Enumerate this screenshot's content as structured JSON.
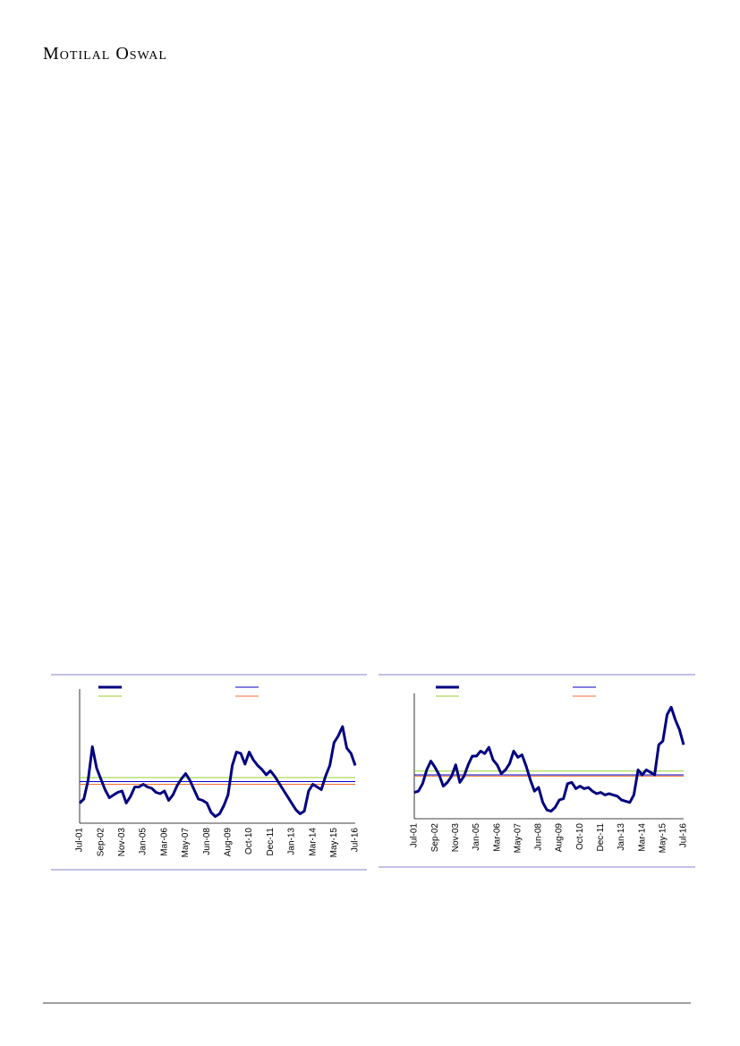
{
  "header": {
    "brand": "Motilal Oswal"
  },
  "chart_data": [
    {
      "type": "line",
      "categories": [
        "Jul-01",
        null,
        null,
        null,
        null,
        "Sep-02",
        null,
        null,
        null,
        null,
        "Nov-03",
        null,
        null,
        null,
        null,
        "Jan-05",
        null,
        null,
        null,
        null,
        "Mar-06",
        null,
        null,
        null,
        null,
        "May-07",
        null,
        null,
        null,
        null,
        "Jun-08",
        null,
        null,
        null,
        null,
        "Aug-09",
        null,
        null,
        null,
        null,
        "Oct-10",
        null,
        null,
        null,
        null,
        "Dec-11",
        null,
        null,
        null,
        null,
        "Jan-13",
        null,
        null,
        null,
        null,
        "Mar-14",
        null,
        null,
        null,
        null,
        "May-15",
        null,
        null,
        null,
        null,
        "Jul-16"
      ],
      "ylim": [
        0,
        100
      ],
      "series": [
        {
          "color": "#000080",
          "line_width": 3,
          "values": [
            15,
            18,
            32,
            57,
            41,
            33,
            25,
            19,
            21,
            23,
            24,
            15,
            20,
            27,
            27,
            29,
            27,
            26,
            23,
            22,
            24,
            17,
            21,
            28,
            33,
            37,
            32,
            25,
            18,
            17,
            15,
            8,
            5,
            7,
            13,
            21,
            43,
            53,
            52,
            44,
            53,
            47,
            43,
            40,
            36,
            39,
            35,
            30,
            25,
            20,
            15,
            10,
            7,
            9,
            24,
            29,
            27,
            25,
            35,
            43,
            60,
            65,
            72,
            56,
            52,
            43
          ]
        }
      ],
      "hlines": [
        {
          "value": 31,
          "color": "#0000cc"
        },
        {
          "value": 34,
          "color": "#9acd32"
        },
        {
          "value": 29,
          "color": "#f07030"
        }
      ]
    },
    {
      "type": "line",
      "categories": [
        "Jul-01",
        null,
        null,
        null,
        null,
        "Sep-02",
        null,
        null,
        null,
        null,
        "Nov-03",
        null,
        null,
        null,
        null,
        "Jan-05",
        null,
        null,
        null,
        null,
        "Mar-06",
        null,
        null,
        null,
        null,
        "May-07",
        null,
        null,
        null,
        null,
        "Jun-08",
        null,
        null,
        null,
        null,
        "Aug-09",
        null,
        null,
        null,
        null,
        "Oct-10",
        null,
        null,
        null,
        null,
        "Dec-11",
        null,
        null,
        null,
        null,
        "Jan-13",
        null,
        null,
        null,
        null,
        "Mar-14",
        null,
        null,
        null,
        null,
        "May-15",
        null,
        null,
        null,
        null,
        "Jul-16"
      ],
      "ylim": [
        0,
        100
      ],
      "series": [
        {
          "color": "#000080",
          "line_width": 3,
          "values": [
            21,
            22,
            28,
            39,
            46,
            41,
            35,
            26,
            29,
            34,
            43,
            29,
            34,
            43,
            50,
            50,
            54,
            52,
            57,
            47,
            43,
            36,
            39,
            44,
            54,
            49,
            51,
            42,
            31,
            22,
            25,
            13,
            7,
            6,
            9,
            15,
            16,
            28,
            29,
            24,
            26,
            24,
            25,
            22,
            20,
            21,
            19,
            20,
            19,
            18,
            15,
            14,
            13,
            19,
            39,
            35,
            39,
            37,
            35,
            59,
            62,
            83,
            89,
            79,
            71,
            59
          ]
        }
      ],
      "hlines": [
        {
          "value": 35,
          "color": "#0000cc"
        },
        {
          "value": 38,
          "color": "#9acd32"
        },
        {
          "value": 34,
          "color": "#f07030"
        }
      ]
    }
  ]
}
